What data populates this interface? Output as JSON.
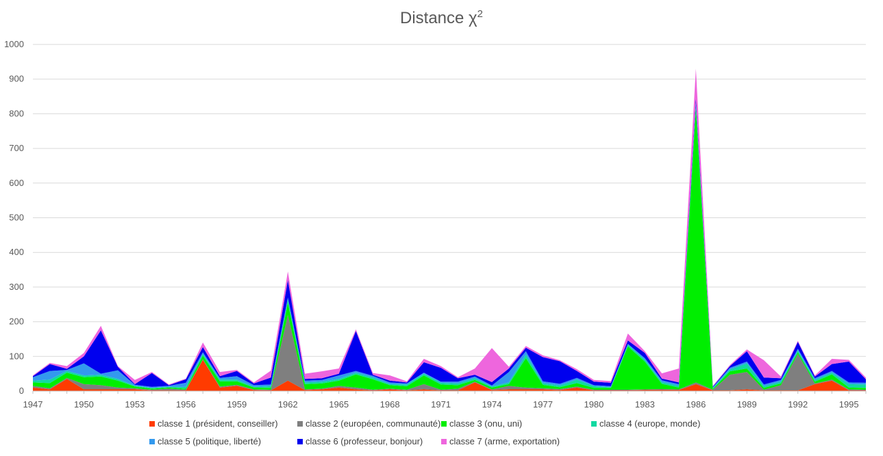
{
  "chart_data": {
    "type": "area",
    "stacked": true,
    "title": "Distance χ",
    "title_superscript": "2",
    "xlabel": "",
    "ylabel": "",
    "ylim": [
      0,
      1000
    ],
    "y_ticks": [
      0,
      100,
      200,
      300,
      400,
      500,
      600,
      700,
      800,
      900,
      1000
    ],
    "x": [
      1947,
      1948,
      1949,
      1950,
      1951,
      1952,
      1953,
      1954,
      1955,
      1956,
      1957,
      1958,
      1959,
      1960,
      1961,
      1962,
      1963,
      1964,
      1965,
      1966,
      1967,
      1968,
      1969,
      1970,
      1971,
      1972,
      1973,
      1974,
      1975,
      1976,
      1977,
      1978,
      1979,
      1980,
      1981,
      1982,
      1983,
      1984,
      1985,
      1986,
      1987,
      1988,
      1989,
      1990,
      1991,
      1992,
      1993,
      1994,
      1995,
      1996
    ],
    "x_ticks": [
      1947,
      1950,
      1953,
      1956,
      1959,
      1962,
      1965,
      1968,
      1971,
      1974,
      1977,
      1980,
      1983,
      1986,
      1989,
      1992,
      1995
    ],
    "grid": true,
    "legend_position": "bottom",
    "series": [
      {
        "name": "classe 1 (président, conseiller)",
        "color": "#ff3b00",
        "values": [
          10,
          5,
          35,
          5,
          5,
          5,
          5,
          2,
          2,
          2,
          90,
          10,
          15,
          3,
          2,
          30,
          3,
          5,
          10,
          5,
          2,
          5,
          2,
          5,
          2,
          2,
          25,
          3,
          5,
          5,
          5,
          3,
          10,
          2,
          2,
          2,
          3,
          3,
          3,
          20,
          2,
          2,
          5,
          2,
          2,
          2,
          20,
          30,
          2,
          2
        ]
      },
      {
        "name": "classe 2 (européen, communauté)",
        "color": "#7f7f7f",
        "values": [
          5,
          3,
          3,
          15,
          12,
          5,
          3,
          2,
          5,
          2,
          2,
          3,
          3,
          2,
          2,
          190,
          2,
          2,
          5,
          5,
          2,
          2,
          2,
          15,
          2,
          5,
          2,
          2,
          10,
          5,
          3,
          3,
          3,
          2,
          2,
          2,
          2,
          3,
          2,
          5,
          2,
          45,
          50,
          2,
          15,
          105,
          2,
          3,
          3,
          2
        ]
      },
      {
        "name": "classe 3 (onu, uni)",
        "color": "#00ee00",
        "values": [
          10,
          15,
          15,
          20,
          25,
          20,
          5,
          3,
          3,
          3,
          10,
          15,
          10,
          5,
          5,
          35,
          15,
          15,
          15,
          38,
          30,
          10,
          10,
          25,
          15,
          10,
          5,
          5,
          5,
          85,
          10,
          5,
          10,
          5,
          5,
          125,
          80,
          15,
          5,
          790,
          2,
          10,
          10,
          5,
          5,
          5,
          5,
          15,
          5,
          5
        ]
      },
      {
        "name": "classe 4 (europe, monde)",
        "color": "#11d9a1",
        "values": [
          5,
          10,
          5,
          5,
          5,
          5,
          2,
          2,
          2,
          5,
          5,
          5,
          5,
          2,
          5,
          10,
          5,
          5,
          5,
          5,
          5,
          3,
          5,
          5,
          5,
          5,
          5,
          3,
          5,
          10,
          5,
          5,
          10,
          5,
          2,
          5,
          5,
          5,
          5,
          10,
          2,
          5,
          15,
          5,
          5,
          5,
          5,
          5,
          10,
          10
        ]
      },
      {
        "name": "classe 5 (politique, liberté)",
        "color": "#3399ee",
        "values": [
          10,
          25,
          3,
          35,
          3,
          25,
          3,
          3,
          3,
          12,
          5,
          5,
          10,
          5,
          5,
          5,
          5,
          5,
          10,
          5,
          5,
          5,
          3,
          3,
          3,
          5,
          5,
          3,
          30,
          10,
          5,
          5,
          5,
          3,
          3,
          2,
          5,
          5,
          5,
          5,
          3,
          5,
          5,
          5,
          5,
          5,
          5,
          5,
          5,
          5
        ]
      },
      {
        "name": "classe 6 (professeur, bonjour)",
        "color": "#0000ee",
        "values": [
          3,
          20,
          3,
          20,
          125,
          10,
          2,
          40,
          2,
          10,
          15,
          5,
          15,
          5,
          20,
          50,
          5,
          5,
          5,
          115,
          3,
          5,
          3,
          30,
          40,
          10,
          5,
          10,
          10,
          10,
          70,
          65,
          20,
          10,
          10,
          10,
          15,
          5,
          5,
          15,
          2,
          5,
          30,
          20,
          5,
          20,
          5,
          20,
          60,
          10
        ]
      },
      {
        "name": "classe 7 (arme, exportation)",
        "color": "#ee66dd",
        "values": [
          2,
          3,
          8,
          10,
          13,
          2,
          12,
          3,
          2,
          2,
          13,
          12,
          3,
          3,
          20,
          25,
          15,
          20,
          15,
          5,
          5,
          15,
          3,
          10,
          5,
          3,
          18,
          98,
          5,
          5,
          5,
          3,
          5,
          5,
          5,
          20,
          5,
          15,
          40,
          85,
          2,
          3,
          5,
          50,
          5,
          3,
          3,
          15,
          5,
          5
        ]
      }
    ]
  }
}
